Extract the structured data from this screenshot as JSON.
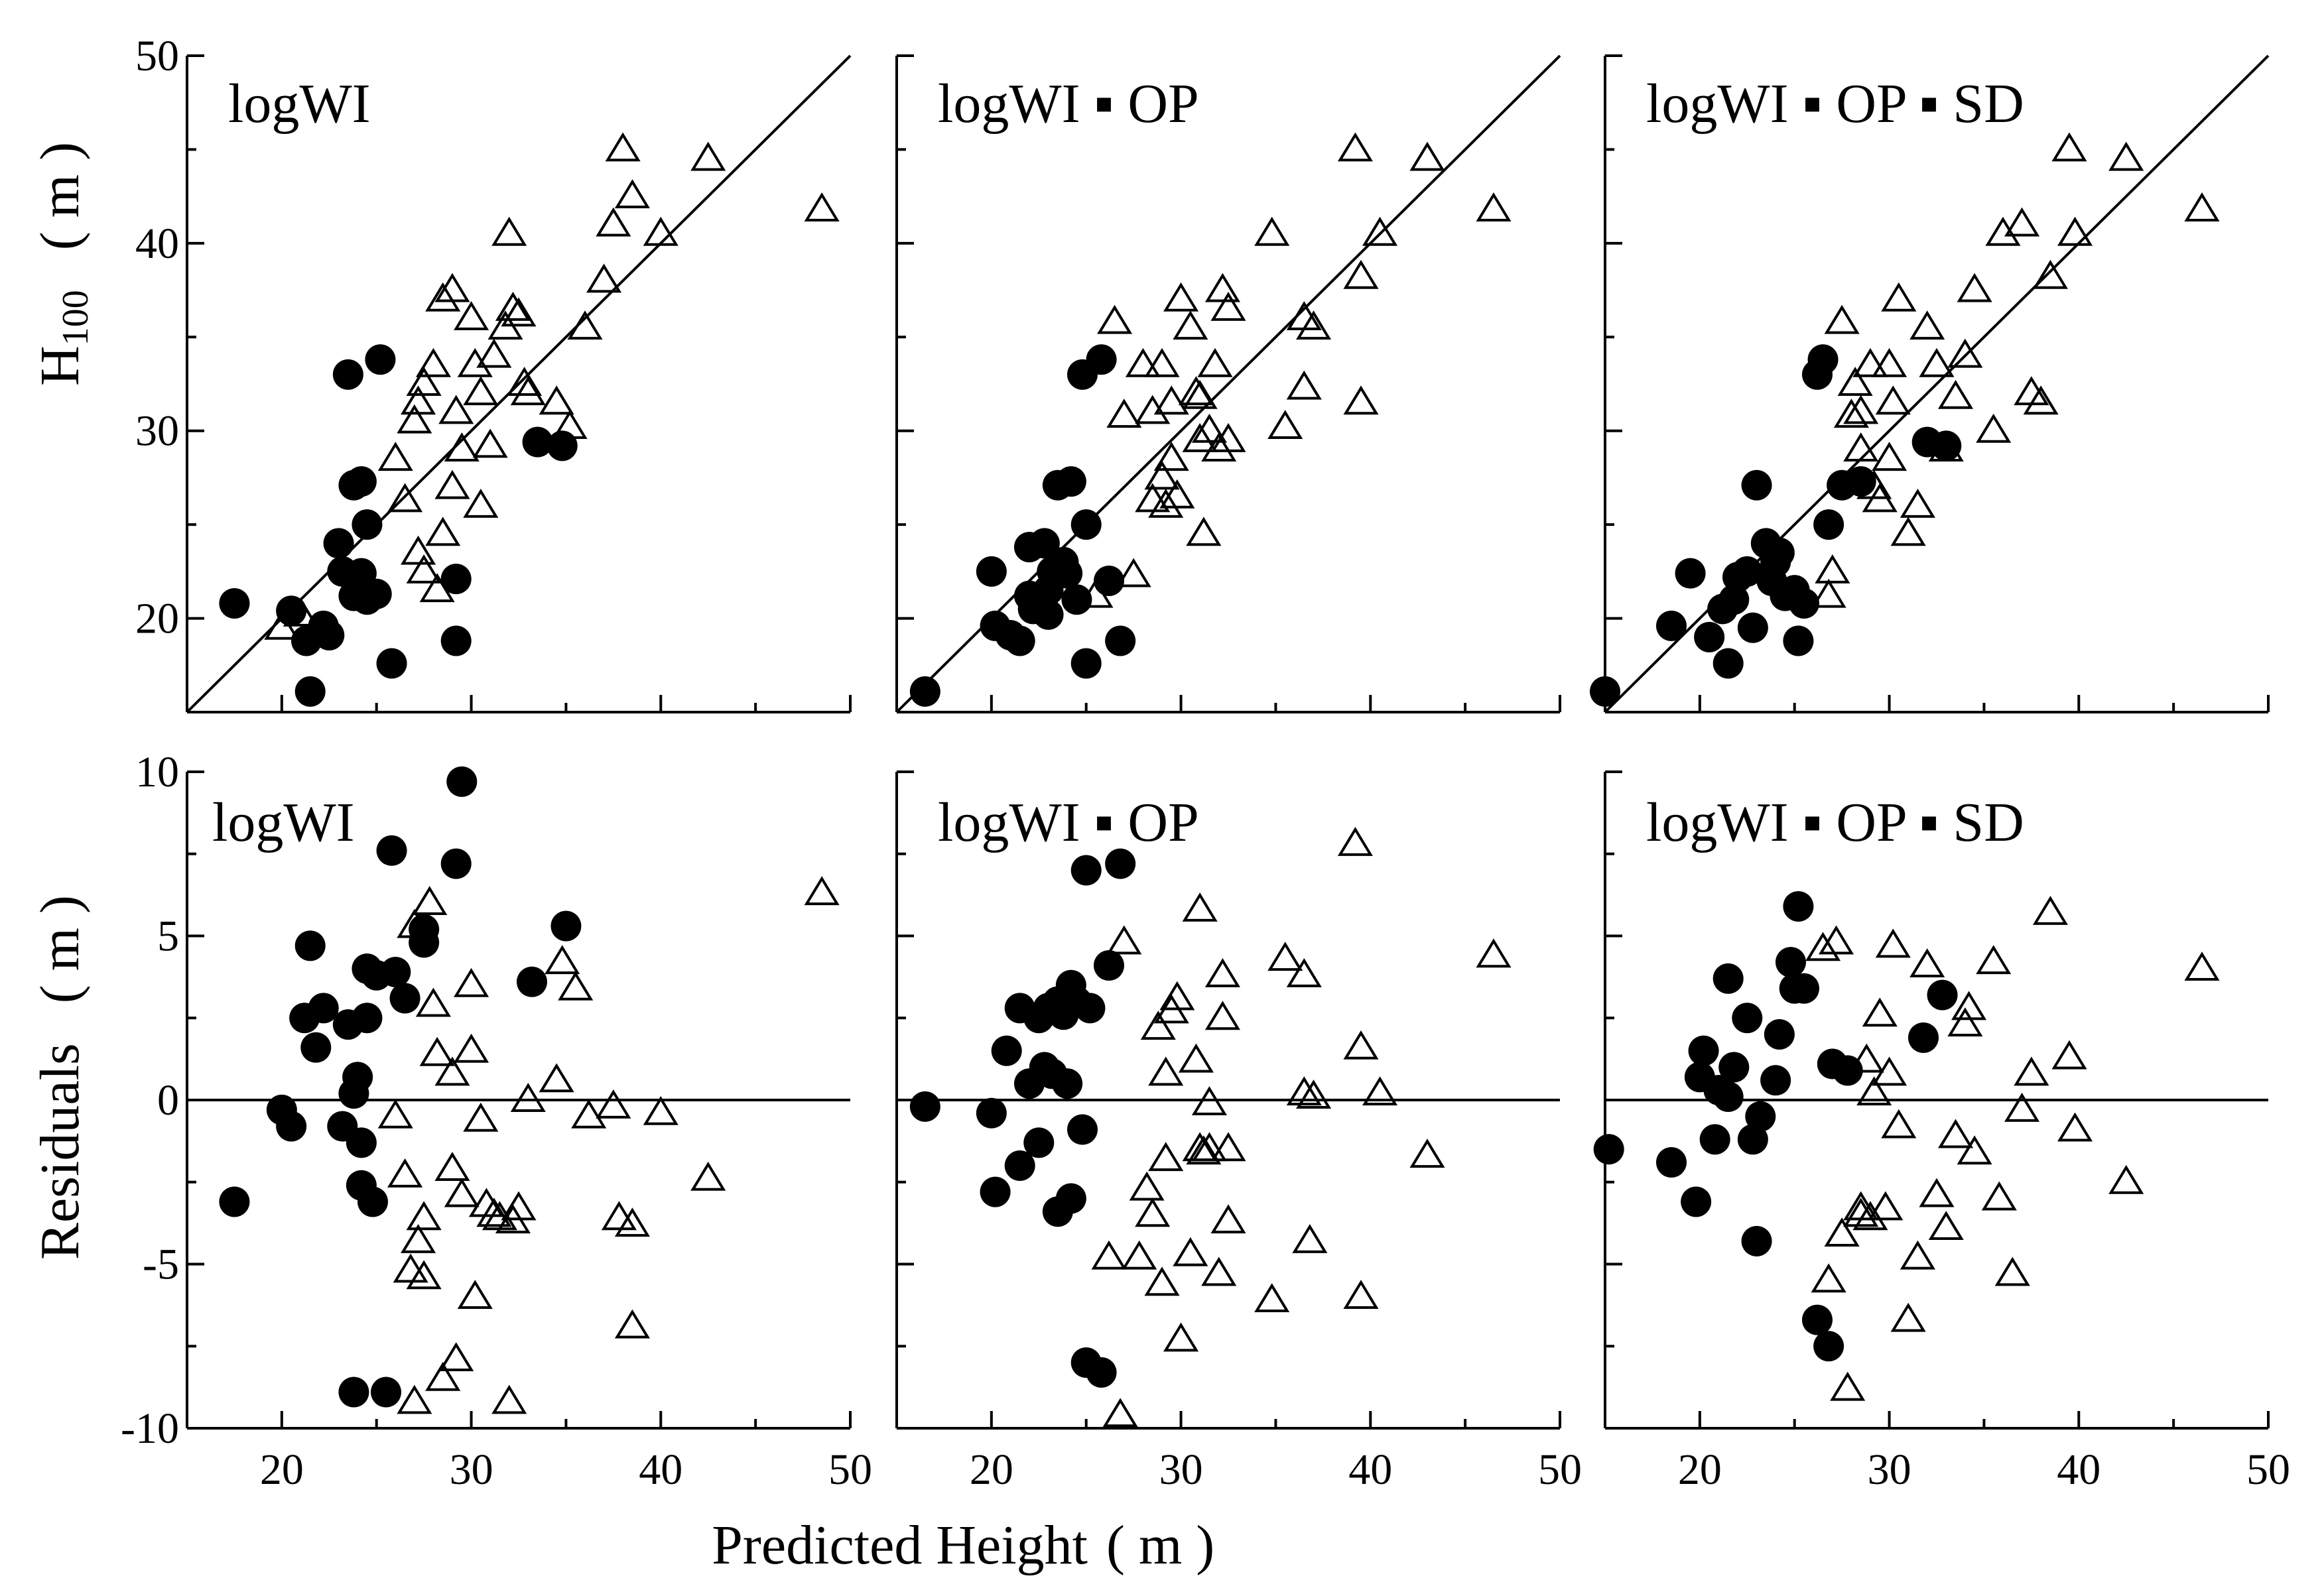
{
  "figure": {
    "xlabel": "Predicted Height",
    "xunit": "( m )",
    "ylabel_top": "H",
    "ylabel_top_sub": "100",
    "ylabel_unit": "( m )",
    "ylabel_bottom": "Residuals",
    "ylabel_bottom_unit": "( m )"
  },
  "chart_data": [
    {
      "type": "scatter",
      "row": 0,
      "col": 0,
      "title": "logWI",
      "xlim": [
        15,
        50
      ],
      "ylim": [
        15,
        50
      ],
      "xticks": [
        20,
        30,
        40,
        50
      ],
      "xtick_labels": [
        "",
        "",
        "",
        ""
      ],
      "yticks": [
        20,
        30,
        40,
        50
      ],
      "ytick_labels": [
        "20",
        "30",
        "40",
        "50"
      ],
      "refline": "1:1",
      "series": [
        {
          "name": "circles",
          "marker": "filled-circle",
          "x": [
            17.5,
            20.5,
            21.3,
            21.5,
            22.2,
            22.5,
            23.0,
            23.2,
            23.5,
            23.8,
            24.2,
            24.5,
            24.5,
            25.0,
            25.2,
            25.8,
            29.2,
            29.2,
            33.5,
            34.8,
            23.8,
            24.2
          ],
          "y": [
            20.8,
            20.4,
            18.8,
            16.1,
            19.6,
            19.1,
            24.0,
            22.5,
            33.0,
            27.1,
            27.3,
            25.0,
            21.0,
            21.3,
            33.8,
            17.6,
            22.1,
            18.8,
            29.4,
            29.2,
            21.2,
            22.4
          ]
        },
        {
          "name": "triangles",
          "marker": "open-triangle",
          "x": [
            20.0,
            21.0,
            26.0,
            26.5,
            27.0,
            27.2,
            27.5,
            27.5,
            28.0,
            28.2,
            28.5,
            29.0,
            29.0,
            29.2,
            29.5,
            30.0,
            30.2,
            30.5,
            30.5,
            31.0,
            31.2,
            31.8,
            32.0,
            32.2,
            32.5,
            32.8,
            33.0,
            34.5,
            35.2,
            36.0,
            37.0,
            37.5,
            38.0,
            38.5,
            40.0,
            42.5,
            48.5,
            27.2,
            28.5
          ],
          "y": [
            19.5,
            20.2,
            28.5,
            26.3,
            30.5,
            31.5,
            32.5,
            22.5,
            33.5,
            21.5,
            24.5,
            27.0,
            37.5,
            31.0,
            29.0,
            36.0,
            33.5,
            32.0,
            26.0,
            29.2,
            34.0,
            35.5,
            40.5,
            36.5,
            36.2,
            32.5,
            32.0,
            31.5,
            30.2,
            35.5,
            38.0,
            41.0,
            45.0,
            42.5,
            40.5,
            44.5,
            41.8,
            23.5,
            37.0
          ]
        }
      ]
    },
    {
      "type": "scatter",
      "row": 0,
      "col": 1,
      "title": "logWI ▪ OP",
      "xlim": [
        15,
        50
      ],
      "ylim": [
        15,
        50
      ],
      "xticks": [
        20,
        30,
        40,
        50
      ],
      "xtick_labels": [
        "",
        "",
        "",
        ""
      ],
      "yticks": [
        20,
        30,
        40,
        50
      ],
      "ytick_labels": [
        "",
        "",
        "",
        ""
      ],
      "refline": "1:1",
      "series": [
        {
          "name": "circles",
          "marker": "filled-circle",
          "x": [
            16.5,
            20.0,
            20.2,
            21.0,
            21.5,
            22.0,
            22.2,
            22.5,
            22.8,
            23.0,
            23.2,
            23.5,
            23.8,
            24.0,
            24.2,
            24.5,
            24.8,
            25.0,
            25.0,
            25.8,
            26.2,
            26.8,
            23.0,
            22.0
          ],
          "y": [
            16.1,
            22.5,
            19.6,
            19.1,
            18.8,
            23.8,
            20.5,
            20.8,
            24.0,
            21.5,
            22.5,
            27.1,
            23.0,
            22.4,
            27.3,
            21.0,
            33.0,
            25.0,
            17.6,
            33.8,
            22.0,
            18.8,
            20.2,
            21.2
          ]
        },
        {
          "name": "triangles",
          "marker": "open-triangle",
          "x": [
            25.5,
            26.5,
            27.0,
            27.5,
            28.0,
            28.5,
            28.5,
            29.0,
            29.0,
            29.2,
            29.5,
            29.5,
            30.0,
            30.5,
            30.8,
            31.0,
            31.2,
            31.5,
            31.8,
            32.0,
            32.2,
            32.5,
            32.5,
            34.8,
            35.5,
            36.5,
            36.5,
            37.0,
            39.2,
            39.5,
            39.5,
            40.5,
            43.0,
            46.5,
            31.0,
            29.8
          ],
          "y": [
            21.2,
            35.8,
            30.8,
            22.3,
            33.5,
            31.0,
            26.3,
            33.5,
            27.5,
            26.0,
            31.5,
            28.5,
            37.0,
            35.5,
            32.0,
            31.8,
            24.5,
            30.0,
            33.5,
            29.0,
            37.5,
            36.5,
            29.5,
            40.5,
            30.2,
            36.0,
            32.3,
            35.5,
            45.0,
            31.5,
            38.2,
            40.5,
            44.5,
            41.8,
            29.5,
            26.5
          ]
        }
      ]
    },
    {
      "type": "scatter",
      "row": 0,
      "col": 2,
      "title": "logWI ▪ OP ▪ SD",
      "xlim": [
        15,
        50
      ],
      "ylim": [
        15,
        50
      ],
      "xticks": [
        20,
        30,
        40,
        50
      ],
      "xtick_labels": [
        "",
        "",
        "",
        ""
      ],
      "yticks": [
        20,
        30,
        40,
        50
      ],
      "ytick_labels": [
        "",
        "",
        "",
        ""
      ],
      "refline": "1:1",
      "series": [
        {
          "name": "circles",
          "marker": "filled-circle",
          "x": [
            15.0,
            18.5,
            19.5,
            20.5,
            21.2,
            21.5,
            21.8,
            22.0,
            22.5,
            22.8,
            23.0,
            23.5,
            24.0,
            24.2,
            24.5,
            25.0,
            25.2,
            25.5,
            26.2,
            26.5,
            26.8,
            27.5,
            28.5,
            32.0,
            33.0,
            23.8
          ],
          "y": [
            16.1,
            19.6,
            22.4,
            19.0,
            20.5,
            17.6,
            21.0,
            22.2,
            22.5,
            19.5,
            27.1,
            24.0,
            23.0,
            23.5,
            21.2,
            21.5,
            18.8,
            20.8,
            33.0,
            33.8,
            25.0,
            27.1,
            27.3,
            29.4,
            29.2,
            22.0
          ]
        },
        {
          "name": "triangles",
          "marker": "open-triangle",
          "x": [
            26.8,
            27.0,
            27.5,
            28.0,
            28.2,
            28.5,
            29.0,
            29.2,
            29.5,
            30.0,
            30.2,
            30.5,
            31.0,
            31.5,
            32.0,
            32.5,
            33.0,
            33.5,
            34.0,
            34.5,
            35.5,
            36.0,
            37.0,
            37.5,
            38.0,
            38.5,
            39.5,
            39.8,
            42.5,
            46.5,
            30.0,
            28.5
          ],
          "y": [
            21.2,
            22.5,
            35.8,
            30.8,
            32.5,
            31.0,
            33.5,
            27.0,
            26.3,
            33.5,
            31.5,
            37.0,
            24.5,
            26.0,
            35.5,
            33.5,
            29.0,
            31.8,
            34.0,
            37.5,
            30.0,
            40.5,
            41.0,
            32.0,
            31.5,
            38.2,
            45.0,
            40.5,
            44.5,
            41.8,
            28.5,
            29.0
          ]
        }
      ]
    },
    {
      "type": "scatter",
      "row": 1,
      "col": 0,
      "title": "logWI",
      "xlim": [
        15,
        50
      ],
      "ylim": [
        -10,
        10
      ],
      "xticks": [
        20,
        30,
        40,
        50
      ],
      "xtick_labels": [
        "20",
        "30",
        "40",
        "50"
      ],
      "yticks": [
        -10,
        -5,
        0,
        5,
        10
      ],
      "ytick_labels": [
        "-10",
        "-5",
        "0",
        "5",
        "10"
      ],
      "refline": "zero",
      "series": [
        {
          "name": "circles",
          "marker": "filled-circle",
          "x": [
            17.5,
            20.0,
            20.5,
            21.2,
            21.5,
            21.8,
            22.2,
            23.5,
            23.8,
            23.8,
            24.2,
            24.2,
            24.5,
            24.5,
            24.8,
            25.0,
            25.5,
            25.8,
            26.5,
            27.5,
            27.5,
            29.2,
            29.5,
            33.2,
            35.0,
            23.2,
            24.0,
            26.0
          ],
          "y": [
            -3.1,
            -0.3,
            -0.8,
            2.5,
            4.7,
            1.6,
            2.8,
            2.3,
            0.2,
            -8.9,
            -1.3,
            -2.6,
            4.0,
            2.5,
            -3.1,
            3.8,
            -8.9,
            7.6,
            3.1,
            4.8,
            5.2,
            7.2,
            9.7,
            3.6,
            5.3,
            -0.8,
            0.7,
            3.9
          ]
        },
        {
          "name": "triangles",
          "marker": "open-triangle",
          "x": [
            26.0,
            26.5,
            26.8,
            27.0,
            27.2,
            27.5,
            27.5,
            27.8,
            28.0,
            28.2,
            28.5,
            29.0,
            29.0,
            29.2,
            29.5,
            30.0,
            30.0,
            30.2,
            30.5,
            30.8,
            31.2,
            31.5,
            32.0,
            32.2,
            32.5,
            33.0,
            34.5,
            34.8,
            35.5,
            36.2,
            37.5,
            37.8,
            38.5,
            38.5,
            40.0,
            42.5,
            48.5,
            27.0
          ],
          "y": [
            -0.5,
            -2.3,
            -5.2,
            -9.2,
            -4.3,
            -5.4,
            -3.6,
            6.0,
            2.9,
            1.4,
            -8.5,
            -2.1,
            0.8,
            -7.9,
            -2.9,
            3.5,
            1.5,
            -6.0,
            -0.6,
            -3.2,
            -3.5,
            -3.6,
            -9.2,
            -3.7,
            -3.3,
            0.0,
            0.6,
            4.2,
            3.4,
            -0.5,
            -0.2,
            -3.6,
            -3.8,
            -6.9,
            -0.4,
            -2.4,
            6.3,
            5.3
          ]
        }
      ]
    },
    {
      "type": "scatter",
      "row": 1,
      "col": 1,
      "title": "logWI ▪ OP",
      "xlim": [
        15,
        50
      ],
      "ylim": [
        -10,
        10
      ],
      "xticks": [
        20,
        30,
        40,
        50
      ],
      "xtick_labels": [
        "20",
        "30",
        "40",
        "50"
      ],
      "yticks": [
        -10,
        -5,
        0,
        5,
        10
      ],
      "ytick_labels": [
        "",
        "",
        "",
        ""
      ],
      "refline": "zero",
      "series": [
        {
          "name": "circles",
          "marker": "filled-circle",
          "x": [
            16.5,
            20.0,
            20.2,
            20.8,
            21.5,
            21.5,
            22.0,
            22.5,
            22.5,
            22.8,
            23.0,
            23.2,
            23.5,
            23.5,
            23.8,
            24.0,
            24.2,
            24.2,
            24.5,
            24.8,
            25.0,
            25.0,
            25.2,
            25.8,
            26.2,
            26.8
          ],
          "y": [
            -0.2,
            -0.4,
            -2.8,
            1.5,
            2.8,
            -2.0,
            0.5,
            2.5,
            -1.3,
            1.0,
            2.8,
            0.8,
            3.0,
            -3.4,
            2.6,
            0.5,
            3.5,
            -3.0,
            3.0,
            -0.9,
            7.0,
            -8.0,
            2.8,
            -8.3,
            4.1,
            7.2
          ]
        },
        {
          "name": "triangles",
          "marker": "open-triangle",
          "x": [
            26.2,
            26.8,
            27.0,
            27.8,
            28.2,
            28.5,
            28.8,
            29.0,
            29.2,
            29.5,
            29.8,
            30.0,
            30.5,
            30.8,
            31.0,
            31.2,
            31.5,
            31.5,
            32.0,
            32.2,
            32.2,
            32.5,
            32.5,
            34.8,
            35.5,
            36.5,
            36.5,
            36.8,
            37.0,
            39.2,
            39.5,
            39.5,
            40.5,
            43.0,
            46.5,
            31.0,
            29.2
          ],
          "y": [
            -4.8,
            -9.6,
            4.8,
            -4.8,
            -2.7,
            -3.5,
            2.2,
            -5.6,
            0.8,
            2.7,
            3.1,
            -7.3,
            -4.7,
            1.2,
            5.8,
            -1.6,
            -1.5,
            -0.1,
            -5.3,
            3.8,
            2.5,
            -3.7,
            -1.5,
            -6.1,
            4.3,
            3.8,
            0.2,
            -4.3,
            0.1,
            7.8,
            -6.0,
            1.6,
            0.2,
            -1.7,
            4.4,
            -1.5,
            -1.8
          ]
        }
      ]
    },
    {
      "type": "scatter",
      "row": 1,
      "col": 2,
      "title": "logWI ▪ OP ▪ SD",
      "xlim": [
        15,
        50
      ],
      "ylim": [
        -10,
        10
      ],
      "xticks": [
        20,
        30,
        40,
        50
      ],
      "xtick_labels": [
        "20",
        "30",
        "40",
        "50"
      ],
      "yticks": [
        -10,
        -5,
        0,
        5,
        10
      ],
      "ytick_labels": [
        "",
        "",
        "",
        ""
      ],
      "refline": "zero",
      "series": [
        {
          "name": "circles",
          "marker": "filled-circle",
          "x": [
            15.2,
            18.5,
            19.8,
            20.0,
            20.2,
            20.8,
            21.5,
            21.5,
            21.8,
            22.5,
            22.8,
            23.0,
            23.2,
            24.0,
            24.2,
            24.8,
            25.0,
            25.2,
            25.5,
            26.2,
            26.8,
            27.0,
            27.8,
            31.8,
            32.8,
            21.0
          ],
          "y": [
            -1.5,
            -1.9,
            -3.1,
            0.7,
            1.5,
            -1.2,
            3.7,
            0.1,
            1.0,
            2.5,
            -1.2,
            -4.3,
            -0.5,
            0.6,
            2.0,
            4.2,
            3.4,
            5.9,
            3.4,
            -6.7,
            -7.5,
            1.1,
            0.9,
            1.9,
            3.2,
            0.3
          ]
        },
        {
          "name": "triangles",
          "marker": "open-triangle",
          "x": [
            26.5,
            26.8,
            27.2,
            27.5,
            27.8,
            28.5,
            28.8,
            29.0,
            29.2,
            29.5,
            29.8,
            30.0,
            30.2,
            30.5,
            31.0,
            31.5,
            32.0,
            32.5,
            33.0,
            33.5,
            34.0,
            34.2,
            34.5,
            35.5,
            35.8,
            36.5,
            37.0,
            37.5,
            38.5,
            39.5,
            39.8,
            42.5,
            46.5,
            28.5
          ],
          "y": [
            4.6,
            -5.5,
            4.8,
            -4.1,
            -8.8,
            -3.3,
            1.2,
            -3.6,
            0.2,
            2.6,
            -3.3,
            0.8,
            4.7,
            -0.8,
            -6.7,
            -4.8,
            4.1,
            -2.9,
            -3.9,
            -1.1,
            2.3,
            2.8,
            -1.6,
            4.2,
            -3.0,
            -5.3,
            -0.3,
            0.8,
            5.7,
            1.3,
            -0.9,
            -2.5,
            4.0,
            -3.5
          ]
        }
      ]
    }
  ]
}
